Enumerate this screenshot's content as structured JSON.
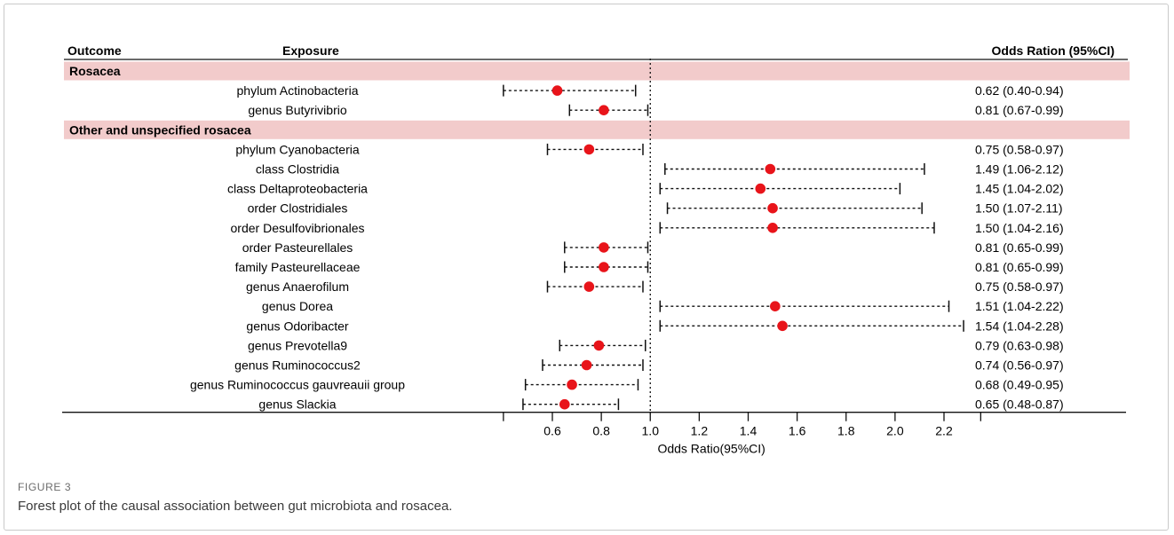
{
  "figure": {
    "label": "FIGURE 3",
    "caption": "Forest plot of the causal association between gut microbiota and rosacea."
  },
  "chart_data": {
    "type": "forest",
    "headers": {
      "outcome": "Outcome",
      "exposure": "Exposure",
      "or": "Odds Ration (95%CI)"
    },
    "xlabel": "Odds Ratio(95%CI)",
    "xlim": [
      0.4,
      2.35
    ],
    "xticks": [
      0.6,
      0.8,
      1.0,
      1.2,
      1.4,
      1.6,
      1.8,
      2.0,
      2.2
    ],
    "xtick_labels": [
      "0.6",
      "0.8",
      "1.0",
      "1.2",
      "1.4",
      "1.6",
      "1.8",
      "2.0",
      "2.2"
    ],
    "reference_line": 1.0,
    "colors": {
      "point": "#e8141a",
      "group_band": "#f2cbcb",
      "line": "#111111"
    },
    "groups": [
      {
        "name": "Rosacea",
        "rows": [
          {
            "exposure": "phylum Actinobacteria",
            "or": 0.62,
            "low": 0.4,
            "high": 0.94,
            "label": "0.62 (0.40-0.94)"
          },
          {
            "exposure": "genus Butyrivibrio",
            "or": 0.81,
            "low": 0.67,
            "high": 0.99,
            "label": "0.81 (0.67-0.99)"
          }
        ]
      },
      {
        "name": "Other and unspecified rosacea",
        "rows": [
          {
            "exposure": "phylum Cyanobacteria",
            "or": 0.75,
            "low": 0.58,
            "high": 0.97,
            "label": "0.75 (0.58-0.97)"
          },
          {
            "exposure": "class Clostridia",
            "or": 1.49,
            "low": 1.06,
            "high": 2.12,
            "label": "1.49 (1.06-2.12)"
          },
          {
            "exposure": "class Deltaproteobacteria",
            "or": 1.45,
            "low": 1.04,
            "high": 2.02,
            "label": "1.45 (1.04-2.02)"
          },
          {
            "exposure": "order Clostridiales",
            "or": 1.5,
            "low": 1.07,
            "high": 2.11,
            "label": "1.50 (1.07-2.11)"
          },
          {
            "exposure": "order Desulfovibrionales",
            "or": 1.5,
            "low": 1.04,
            "high": 2.16,
            "label": "1.50 (1.04-2.16)"
          },
          {
            "exposure": "order Pasteurellales",
            "or": 0.81,
            "low": 0.65,
            "high": 0.99,
            "label": "0.81 (0.65-0.99)"
          },
          {
            "exposure": "family Pasteurellaceae",
            "or": 0.81,
            "low": 0.65,
            "high": 0.99,
            "label": "0.81 (0.65-0.99)"
          },
          {
            "exposure": "genus Anaerofilum",
            "or": 0.75,
            "low": 0.58,
            "high": 0.97,
            "label": "0.75 (0.58-0.97)"
          },
          {
            "exposure": "genus Dorea",
            "or": 1.51,
            "low": 1.04,
            "high": 2.22,
            "label": "1.51 (1.04-2.22)"
          },
          {
            "exposure": "genus Odoribacter",
            "or": 1.54,
            "low": 1.04,
            "high": 2.28,
            "label": "1.54 (1.04-2.28)"
          },
          {
            "exposure": "genus Prevotella9",
            "or": 0.79,
            "low": 0.63,
            "high": 0.98,
            "label": "0.79 (0.63-0.98)"
          },
          {
            "exposure": "genus Ruminococcus2",
            "or": 0.74,
            "low": 0.56,
            "high": 0.97,
            "label": "0.74 (0.56-0.97)"
          },
          {
            "exposure": "genus Ruminococcus gauvreauii group",
            "or": 0.68,
            "low": 0.49,
            "high": 0.95,
            "label": "0.68 (0.49-0.95)"
          },
          {
            "exposure": "genus Slackia",
            "or": 0.65,
            "low": 0.48,
            "high": 0.87,
            "label": "0.65 (0.48-0.87)"
          }
        ]
      }
    ]
  }
}
